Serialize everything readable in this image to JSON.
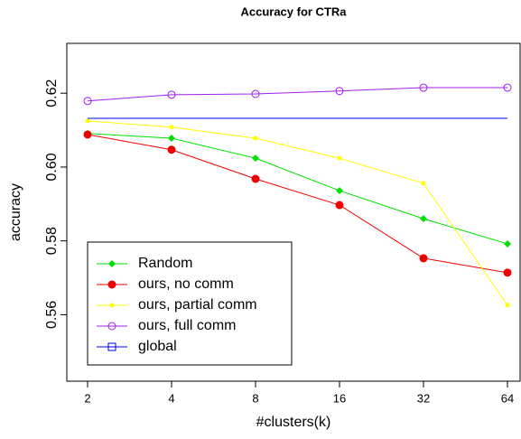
{
  "chart_data": {
    "type": "line",
    "title": "Accuracy for CTRa",
    "x_label": "#clusters(k)",
    "y_label": "accuracy",
    "categories": [
      "2",
      "4",
      "8",
      "16",
      "32",
      "64"
    ],
    "series": [
      {
        "name": "Random",
        "color": "#00e000",
        "marker": "diamond",
        "values": [
          0.6091,
          0.6078,
          0.6024,
          0.5936,
          0.586,
          0.5792
        ]
      },
      {
        "name": "ours, no comm",
        "color": "#ee0000",
        "marker": "circle-filled",
        "values": [
          0.6088,
          0.6047,
          0.5968,
          0.5897,
          0.5753,
          0.5714
        ]
      },
      {
        "name": "ours, partial comm",
        "color": "#ffff00",
        "marker": "dot",
        "values": [
          0.6125,
          0.6108,
          0.6078,
          0.6024,
          0.5956,
          0.5626
        ]
      },
      {
        "name": "ours, full comm",
        "color": "#a020f0",
        "marker": "circle-open",
        "values": [
          0.6179,
          0.6196,
          0.6198,
          0.6206,
          0.6215,
          0.6215
        ]
      },
      {
        "name": "global",
        "color": "#0000ee",
        "marker": "square-open",
        "values": [
          0.6132,
          0.6132,
          0.6132,
          0.6132,
          0.6132,
          0.6132
        ]
      }
    ],
    "ylim": [
      0.542,
      0.6335
    ],
    "yticks": [
      {
        "value": 0.56,
        "label": "0.56"
      },
      {
        "value": 0.58,
        "label": "0.58"
      },
      {
        "value": 0.6,
        "label": "0.60"
      },
      {
        "value": 0.62,
        "label": "0.62"
      }
    ],
    "legend": "bottom-left"
  }
}
